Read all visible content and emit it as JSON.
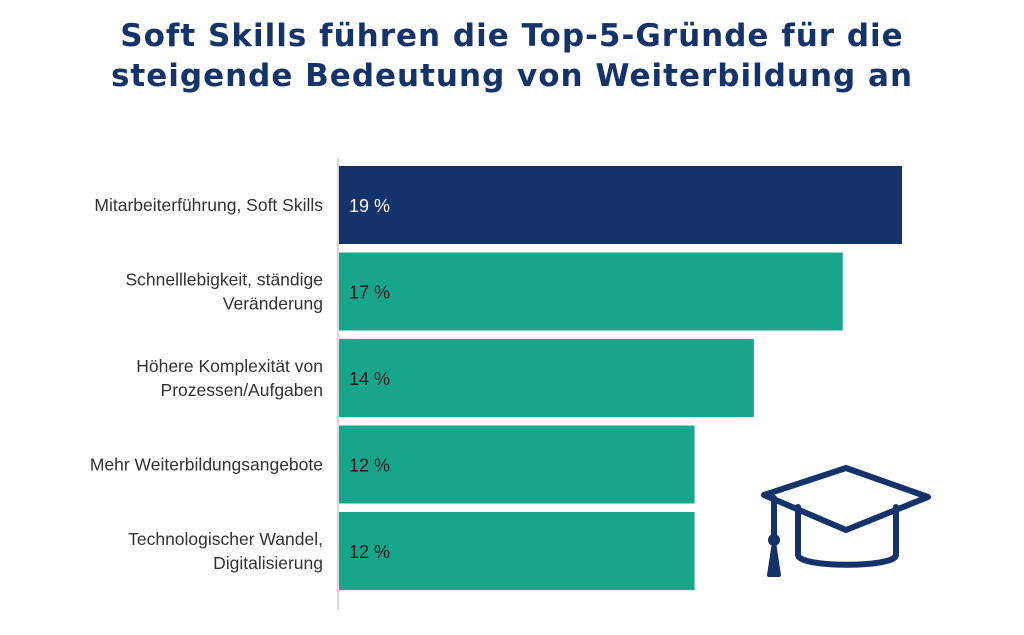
{
  "title_lines": [
    "Soft Skills führen die Top-5-Gründe für die",
    "steigende Bedeutung von Weiterbildung an"
  ],
  "colors": {
    "title": "#14336b",
    "highlight_bar": "#14336b",
    "bar": "#17a58c",
    "icon": "#14336b",
    "axis": "#cccccc"
  },
  "icon": "graduation-cap-icon",
  "chart_data": {
    "type": "bar",
    "orientation": "horizontal",
    "title": "Soft Skills führen die Top-5-Gründe für die steigende Bedeutung von Weiterbildung an",
    "categories": [
      [
        "Mitarbeiterführung, Soft Skills"
      ],
      [
        "Schnelllebigkeit, ständige",
        "Veränderung"
      ],
      [
        "Höhere Komplexität von",
        "Prozessen/Aufgaben"
      ],
      [
        "Mehr Weiterbildungsangebote"
      ],
      [
        "Technologischer Wandel,",
        "Digitalisierung"
      ]
    ],
    "values": [
      19,
      17,
      14,
      12,
      12
    ],
    "value_labels": [
      "19 %",
      "17 %",
      "14 %",
      "12 %",
      "12 %"
    ],
    "unit": "%",
    "highlighted_index": 0,
    "xlim": [
      0,
      19
    ],
    "grid": false,
    "legend": "none"
  }
}
